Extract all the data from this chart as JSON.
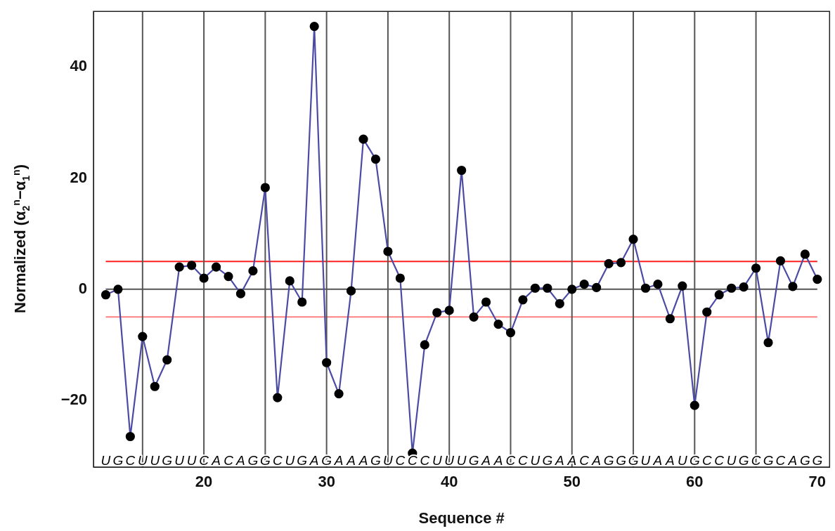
{
  "chart_data": {
    "type": "line",
    "xlabel": "Sequence #",
    "ylabel": "Normalized (α$_{2}$$^{n}$−α$_{1}$$^{n}$)",
    "x": [
      12,
      13,
      14,
      15,
      16,
      17,
      18,
      19,
      20,
      21,
      22,
      23,
      24,
      25,
      26,
      27,
      28,
      29,
      30,
      31,
      32,
      33,
      34,
      35,
      36,
      37,
      38,
      39,
      40,
      41,
      42,
      43,
      44,
      45,
      46,
      47,
      48,
      49,
      50,
      51,
      52,
      53,
      54,
      55,
      56,
      57,
      58,
      59,
      60,
      61,
      62,
      63,
      64,
      65,
      66,
      67,
      68,
      69,
      70
    ],
    "series": [
      {
        "color": "#4b4ba6",
        "values": [
          -1,
          0,
          -26.5,
          -8.5,
          -17.5,
          -12.7,
          4,
          4.3,
          2,
          4,
          2.3,
          -0.8,
          3.3,
          18.3,
          -19.5,
          1.5,
          -2.3,
          47.3,
          -13.2,
          -18.8,
          -0.3,
          27,
          23.4,
          6.8,
          2,
          -29.5,
          -10,
          -4.2,
          -3.8,
          21.4,
          -5,
          -2.3,
          -6.3,
          -7.8,
          -1.9,
          0.2,
          0.2,
          -2.6,
          0,
          0.9,
          0.3,
          4.6,
          4.8,
          9,
          0.2,
          0.9,
          -5.3,
          0.6,
          -20.9,
          -4.1,
          -1,
          0.2,
          0.4,
          3.8,
          -9.6,
          5.1,
          0.5,
          6.3,
          1.8
        ]
      }
    ],
    "marker": "circle",
    "line_style": "solid",
    "grid": false,
    "legend": false,
    "xlim": [
      11,
      71
    ],
    "xticks": [
      20,
      30,
      40,
      50,
      60,
      70
    ],
    "ylim": [
      -32,
      50
    ],
    "yticks": [
      -20,
      0,
      20,
      40
    ],
    "ref_lines": [
      {
        "axis": "y",
        "value": 0,
        "color": "#555555"
      },
      {
        "axis": "y",
        "value": 5,
        "color": "#ff2020"
      },
      {
        "axis": "y",
        "value": -5,
        "color": "#ff8080"
      },
      {
        "axis": "x",
        "value": 15,
        "color": "#555555"
      },
      {
        "axis": "x",
        "value": 20,
        "color": "#555555"
      },
      {
        "axis": "x",
        "value": 25,
        "color": "#555555"
      },
      {
        "axis": "x",
        "value": 30,
        "color": "#555555"
      },
      {
        "axis": "x",
        "value": 35,
        "color": "#555555"
      },
      {
        "axis": "x",
        "value": 40,
        "color": "#555555"
      },
      {
        "axis": "x",
        "value": 45,
        "color": "#555555"
      },
      {
        "axis": "x",
        "value": 50,
        "color": "#555555"
      },
      {
        "axis": "x",
        "value": 55,
        "color": "#555555"
      },
      {
        "axis": "x",
        "value": 60,
        "color": "#555555"
      },
      {
        "axis": "x",
        "value": 65,
        "color": "#555555"
      }
    ],
    "annotations": [
      "UGCUUGUUCACAGGCUGAGAAAGUCCCUUUGAACCUGAACAGGGUAAUGCCUGCGCAGG"
    ]
  }
}
